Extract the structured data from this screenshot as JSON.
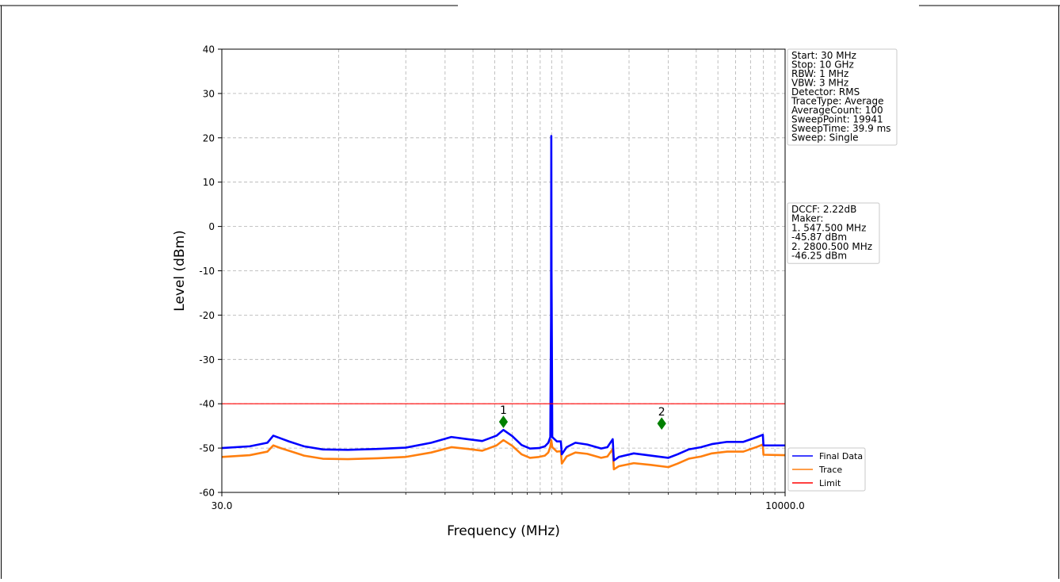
{
  "chart_data": {
    "type": "line",
    "xlabel": "Frequency (MHz)",
    "ylabel": "Level (dBm)",
    "x_scale": "log",
    "xlim": [
      30.0,
      10000.0
    ],
    "ylim": [
      -60,
      40
    ],
    "x_tick_labels": [
      {
        "value": 30.0,
        "label": "30.0"
      },
      {
        "value": 10000.0,
        "label": "10000.0"
      }
    ],
    "x_minor_ticks": [
      100,
      200,
      300,
      400,
      500,
      600,
      700,
      800,
      900,
      1000,
      2000,
      3000,
      4000,
      5000,
      6000,
      7000,
      8000,
      9000
    ],
    "y_ticks": [
      40,
      30,
      20,
      10,
      0,
      -10,
      -20,
      -30,
      -40,
      -50,
      -60
    ],
    "grid": true,
    "legend_position": "bottom-right (outside plot)",
    "colors": {
      "final": "#0000ff",
      "trace": "#ff7f0e",
      "limit": "#ff0000",
      "marker": "#008000"
    },
    "series": [
      {
        "name": "Final Data",
        "color": "#0000ff",
        "points": [
          [
            30,
            -50
          ],
          [
            40,
            -49.6
          ],
          [
            48,
            -48.8
          ],
          [
            51,
            -47.2
          ],
          [
            55,
            -47.8
          ],
          [
            60,
            -48.5
          ],
          [
            70,
            -49.6
          ],
          [
            85,
            -50.3
          ],
          [
            110,
            -50.4
          ],
          [
            150,
            -50.2
          ],
          [
            200,
            -49.9
          ],
          [
            260,
            -48.8
          ],
          [
            320,
            -47.5
          ],
          [
            380,
            -48.0
          ],
          [
            440,
            -48.4
          ],
          [
            510,
            -47.2
          ],
          [
            547.5,
            -45.9
          ],
          [
            600,
            -47.3
          ],
          [
            660,
            -49.3
          ],
          [
            720,
            -50.1
          ],
          [
            790,
            -50.0
          ],
          [
            840,
            -49.6
          ],
          [
            870,
            -48.8
          ],
          [
            888,
            -47.5
          ],
          [
            895,
            -20
          ],
          [
            897,
            20.4
          ],
          [
            899,
            -10
          ],
          [
            902,
            -25
          ],
          [
            906,
            -47.5
          ],
          [
            950,
            -48.5
          ],
          [
            990,
            -48.5
          ],
          [
            1000,
            -51.4
          ],
          [
            1050,
            -49.8
          ],
          [
            1150,
            -48.8
          ],
          [
            1300,
            -49.2
          ],
          [
            1500,
            -50.1
          ],
          [
            1600,
            -49.8
          ],
          [
            1690,
            -48.0
          ],
          [
            1710,
            -52.8
          ],
          [
            1800,
            -52.0
          ],
          [
            2100,
            -51.2
          ],
          [
            2500,
            -51.7
          ],
          [
            3000,
            -52.2
          ],
          [
            3300,
            -51.4
          ],
          [
            3700,
            -50.3
          ],
          [
            4200,
            -49.8
          ],
          [
            4700,
            -49.1
          ],
          [
            5500,
            -48.6
          ],
          [
            6500,
            -48.6
          ],
          [
            7500,
            -47.5
          ],
          [
            7950,
            -47.0
          ],
          [
            8000,
            -49.4
          ],
          [
            10000,
            -49.4
          ]
        ]
      },
      {
        "name": "Trace",
        "color": "#ff7f0e",
        "points": [
          [
            30,
            -52
          ],
          [
            40,
            -51.6
          ],
          [
            48,
            -50.8
          ],
          [
            51,
            -49.4
          ],
          [
            55,
            -50
          ],
          [
            60,
            -50.6
          ],
          [
            70,
            -51.7
          ],
          [
            85,
            -52.4
          ],
          [
            110,
            -52.5
          ],
          [
            150,
            -52.3
          ],
          [
            200,
            -52
          ],
          [
            260,
            -51
          ],
          [
            320,
            -49.8
          ],
          [
            380,
            -50.2
          ],
          [
            440,
            -50.6
          ],
          [
            510,
            -49.4
          ],
          [
            547.5,
            -48.2
          ],
          [
            600,
            -49.5
          ],
          [
            660,
            -51.4
          ],
          [
            720,
            -52.2
          ],
          [
            790,
            -52
          ],
          [
            840,
            -51.7
          ],
          [
            870,
            -51
          ],
          [
            888,
            -49.7
          ],
          [
            897,
            -48.2
          ],
          [
            906,
            -49.8
          ],
          [
            950,
            -50.8
          ],
          [
            990,
            -50.7
          ],
          [
            1000,
            -53.5
          ],
          [
            1050,
            -51.9
          ],
          [
            1150,
            -51
          ],
          [
            1300,
            -51.3
          ],
          [
            1500,
            -52.2
          ],
          [
            1600,
            -51.9
          ],
          [
            1690,
            -50.2
          ],
          [
            1710,
            -54.8
          ],
          [
            1800,
            -54.1
          ],
          [
            2100,
            -53.4
          ],
          [
            2500,
            -53.8
          ],
          [
            3000,
            -54.3
          ],
          [
            3300,
            -53.5
          ],
          [
            3700,
            -52.4
          ],
          [
            4200,
            -51.9
          ],
          [
            4700,
            -51.2
          ],
          [
            5500,
            -50.8
          ],
          [
            6500,
            -50.8
          ],
          [
            7500,
            -49.7
          ],
          [
            7950,
            -49.2
          ],
          [
            8000,
            -51.5
          ],
          [
            10000,
            -51.6
          ]
        ]
      },
      {
        "name": "Limit",
        "color": "#ff0000",
        "points": [
          [
            30,
            -40
          ],
          [
            10000,
            -40
          ]
        ]
      }
    ],
    "markers": [
      {
        "label": "1",
        "x": 547.5,
        "y": -45.87
      },
      {
        "label": "2",
        "x": 2800.5,
        "y": -46.25
      }
    ],
    "info_box": [
      "Start: 30 MHz",
      "Stop: 10 GHz",
      "RBW: 1 MHz",
      "VBW: 3 MHz",
      "Detector: RMS",
      "TraceType: Average",
      "AverageCount: 100",
      "SweepPoint: 19941",
      "SweepTime: 39.9 ms",
      "Sweep: Single"
    ],
    "marker_box": [
      "DCCF: 2.22dB",
      "Maker:",
      "1. 547.500 MHz",
      "    -45.87 dBm",
      "2. 2800.500 MHz",
      "    -46.25 dBm"
    ]
  }
}
